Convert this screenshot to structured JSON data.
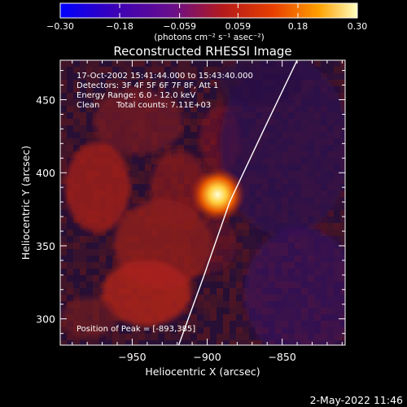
{
  "chart_data": {
    "type": "heatmap",
    "title": "Reconstructed RHESSI Image",
    "xlabel": "Heliocentric X (arcsec)",
    "ylabel": "Heliocentric Y (arcsec)",
    "xlim": [
      -998,
      -808
    ],
    "ylim": [
      282,
      477
    ],
    "x_ticks": [
      -950,
      -900,
      -850
    ],
    "y_ticks": [
      300,
      350,
      400,
      450
    ],
    "x_tick_labels": [
      "−950",
      "−900",
      "−850"
    ],
    "y_tick_labels": [
      "300",
      "350",
      "400",
      "450"
    ],
    "colorbar": {
      "min": -0.3,
      "max": 0.3,
      "ticks": [
        -0.3,
        -0.18,
        -0.059,
        0.059,
        0.18,
        0.3
      ],
      "tick_labels": [
        "−0.30",
        "−0.18",
        "−0.059",
        "0.059",
        "0.18",
        "0.30"
      ],
      "unit_label": "(photons cm⁻² s⁻¹ asec⁻²)",
      "colors": [
        "#0000ff",
        "#3a00b8",
        "#6a0f8a",
        "#b51a1a",
        "#e84000",
        "#ffa000",
        "#ffffc0"
      ]
    },
    "annotations": [
      "17-Oct-2002 15:41:44.000 to 15:43:40.000",
      "Detectors: 3F 4F 5F 6F 7F 8F, Att 1",
      "Energy Range: 6.0 - 12.0 keV",
      "Clean",
      "Total counts: 7.11E+03"
    ],
    "peak_label": "Position of Peak = [-893,385]",
    "peak": {
      "x": -893,
      "y": 385
    },
    "limb_curve": [
      {
        "x": -919,
        "y": 282
      },
      {
        "x": -902,
        "y": 330
      },
      {
        "x": -885,
        "y": 380
      },
      {
        "x": -862,
        "y": 430
      },
      {
        "x": -840,
        "y": 477
      }
    ]
  },
  "footer": {
    "timestamp": "2-May-2022 11:46"
  }
}
